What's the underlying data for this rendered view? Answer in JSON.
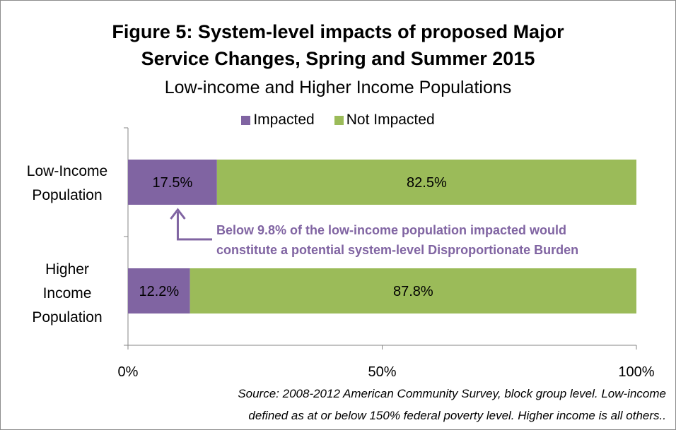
{
  "chart_data": {
    "type": "bar",
    "orientation": "horizontal",
    "stacked": true,
    "title_line1": "Figure 5: System-level impacts of proposed Major",
    "title_line2": "Service Changes, Spring and Summer 2015",
    "subtitle": "Low-income and Higher Income Populations",
    "categories": [
      [
        "Low-Income",
        "Population"
      ],
      [
        "Higher",
        "Income",
        "Population"
      ]
    ],
    "series": [
      {
        "name": "Impacted",
        "color": "#8064a2",
        "values": [
          17.5,
          12.2
        ],
        "labels": [
          "17.5%",
          "12.2%"
        ]
      },
      {
        "name": "Not Impacted",
        "color": "#9bbb59",
        "values": [
          82.5,
          87.8
        ],
        "labels": [
          "82.5%",
          "87.8%"
        ]
      }
    ],
    "x_ticks": [
      "0%",
      "50%",
      "100%"
    ],
    "xlim": [
      0,
      100
    ],
    "legend_position": "top",
    "grid": false,
    "annotation": {
      "line1": "Below 9.8% of the low-income population impacted would",
      "line2": "constitute a potential system-level Disproportionate Burden",
      "color": "#8064a2",
      "points_to_value": 9.8
    },
    "source_line1": "Source: 2008-2012 American Community Survey, block group level. Low-income",
    "source_line2": "defined as at or below 150% federal poverty level. Higher income is all others.."
  }
}
